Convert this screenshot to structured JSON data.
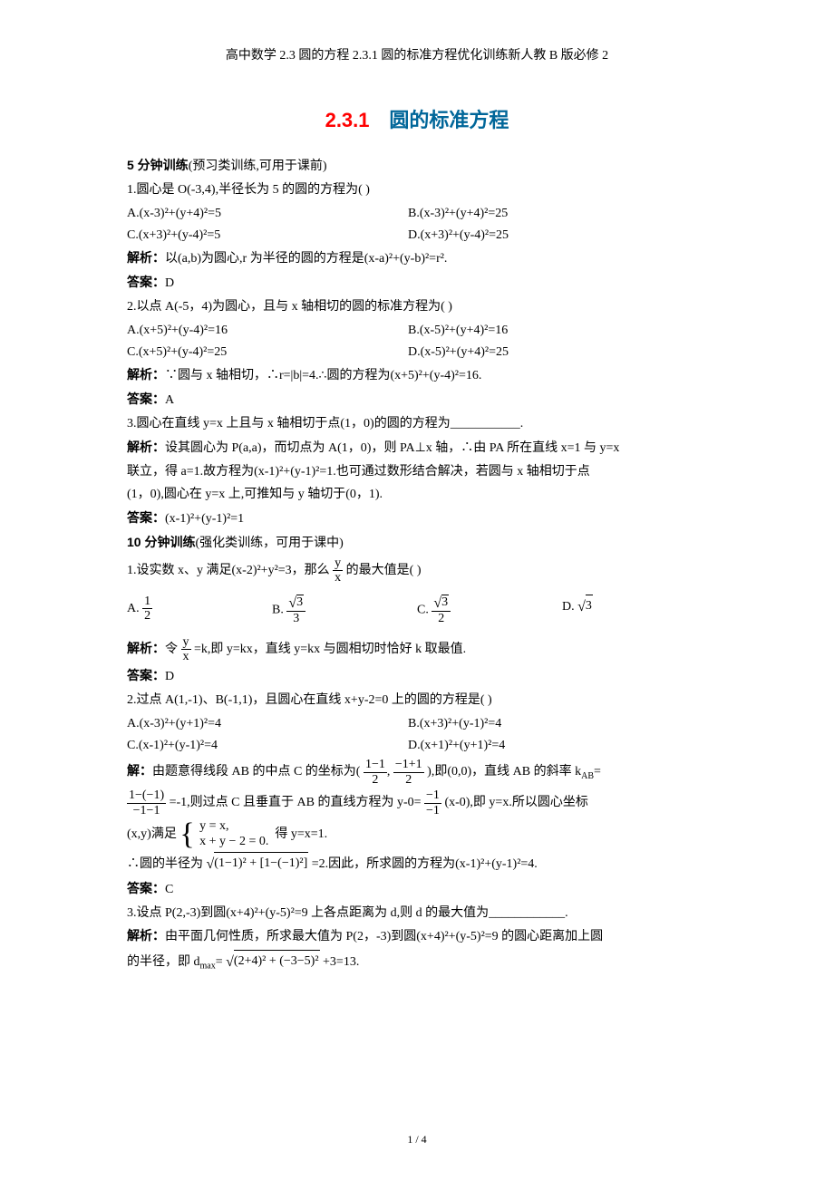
{
  "header": "高中数学 2.3 圆的方程 2.3.1 圆的标准方程优化训练新人教 B 版必修 2",
  "title_num": "2.3.1",
  "title_text": "圆的标准方程",
  "sec5_heading": "5 分钟训练",
  "sec5_note": "(预习类训练,可用于课前)",
  "q1": {
    "stem": "1.圆心是 O(-3,4),半径长为 5 的圆的方程为(    )",
    "a": "A.(x-3)²+(y+4)²=5",
    "b": "B.(x-3)²+(y+4)²=25",
    "c": "C.(x+3)²+(y-4)²=5",
    "d": "D.(x+3)²+(y-4)²=25",
    "analysis_label": "解析：",
    "analysis": "以(a,b)为圆心,r 为半径的圆的方程是(x-a)²+(y-b)²=r².",
    "answer_label": "答案：",
    "answer": "D"
  },
  "q2": {
    "stem": "2.以点 A(-5，4)为圆心，且与 x 轴相切的圆的标准方程为(    )",
    "a": "A.(x+5)²+(y-4)²=16",
    "b": "B.(x-5)²+(y+4)²=16",
    "c": "C.(x+5)²+(y-4)²=25",
    "d": "D.(x-5)²+(y+4)²=25",
    "analysis_label": "解析：",
    "analysis": "∵圆与 x 轴相切，∴r=|b|=4.∴圆的方程为(x+5)²+(y-4)²=16.",
    "answer_label": "答案：",
    "answer": "A"
  },
  "q3": {
    "stem": "3.圆心在直线 y=x 上且与 x 轴相切于点(1，0)的圆的方程为___________.",
    "analysis_label": "解析：",
    "analysis_a": "设其圆心为 P(a,a)，而切点为 A(1，0)，则 PA⊥x 轴，∴由 PA 所在直线 x=1 与 y=x",
    "analysis_b": "联立，得 a=1.故方程为(x-1)²+(y-1)²=1.也可通过数形结合解决，若圆与 x 轴相切于点",
    "analysis_c": "(1，0),圆心在 y=x 上,可推知与 y 轴切于(0，1).",
    "answer_label": "答案：",
    "answer": "(x-1)²+(y-1)²=1"
  },
  "sec10_heading": "10 分钟训练",
  "sec10_note": "(强化类训练，可用于课中)",
  "p1": {
    "stem_a": "1.设实数 x、y 满足(x-2)²+y²=3，那么",
    "frac_num": "y",
    "frac_den": "x",
    "stem_b": "的最大值是(    )",
    "a_num": "1",
    "a_den": "2",
    "b_rad": "3",
    "b_den": "3",
    "c_rad": "3",
    "c_den": "2",
    "d_rad": "3",
    "analysis_label": "解析：",
    "analysis_a": "令",
    "analysis_b": "=k,即 y=kx，直线 y=kx 与圆相切时恰好 k 取最值.",
    "answer_label": "答案：",
    "answer": "D"
  },
  "p2": {
    "stem": "2.过点 A(1,-1)、B(-1,1)，且圆心在直线 x+y-2=0 上的圆的方程是(    )",
    "a": "A.(x-3)²+(y+1)²=4",
    "b": "B.(x+3)²+(y-1)²=4",
    "c": "C.(x-1)²+(y-1)²=4",
    "d": "D.(x+1)²+(y+1)²=4",
    "sol_label": "解：",
    "sol_a": "由题意得线段 AB 的中点 C 的坐标为(",
    "f1_num": "1−1",
    "f1_den": "2",
    "comma": ",",
    "f2_num": "−1+1",
    "f2_den": "2",
    "sol_b": "),即(0,0)，直线 AB 的斜率 k",
    "sol_b_sub": "AB",
    "sol_b2": "=",
    "f3_num": "1−(−1)",
    "f3_den": "−1−1",
    "sol_c": "=-1,则过点 C 且垂直于 AB 的直线方程为 y-0=",
    "f4_num": "−1",
    "f4_den": "−1",
    "sol_d": "(x-0),即 y=x.所以圆心坐标",
    "sys_line": "(x,y)满足",
    "sys_eq1": "y = x,",
    "sys_eq2": "x + y − 2 = 0.",
    "sys_after": "得 y=x=1.",
    "radius_a": "∴圆的半径为",
    "rad_expr": "(1−1)² + [1−(−1)²]",
    "radius_b": "=2.因此，所求圆的方程为(x-1)²+(y-1)²=4.",
    "answer_label": "答案：",
    "answer": "C"
  },
  "p3": {
    "stem": "3.设点 P(2,-3)到圆(x+4)²+(y-5)²=9 上各点距离为 d,则 d 的最大值为____________.",
    "analysis_label": "解析：",
    "analysis_a": "由平面几何性质，所求最大值为 P(2，-3)到圆(x+4)²+(y-5)²=9 的圆心距离加上圆",
    "analysis_b": "的半径，即 d",
    "sub": "max",
    "eq": "=",
    "rad_expr": "(2+4)² + (−3−5)²",
    "tail": "+3=13."
  },
  "footer": "1 / 4",
  "colors": {
    "title_red": "#ff0000",
    "title_blue": "#006699",
    "black": "#000000"
  }
}
